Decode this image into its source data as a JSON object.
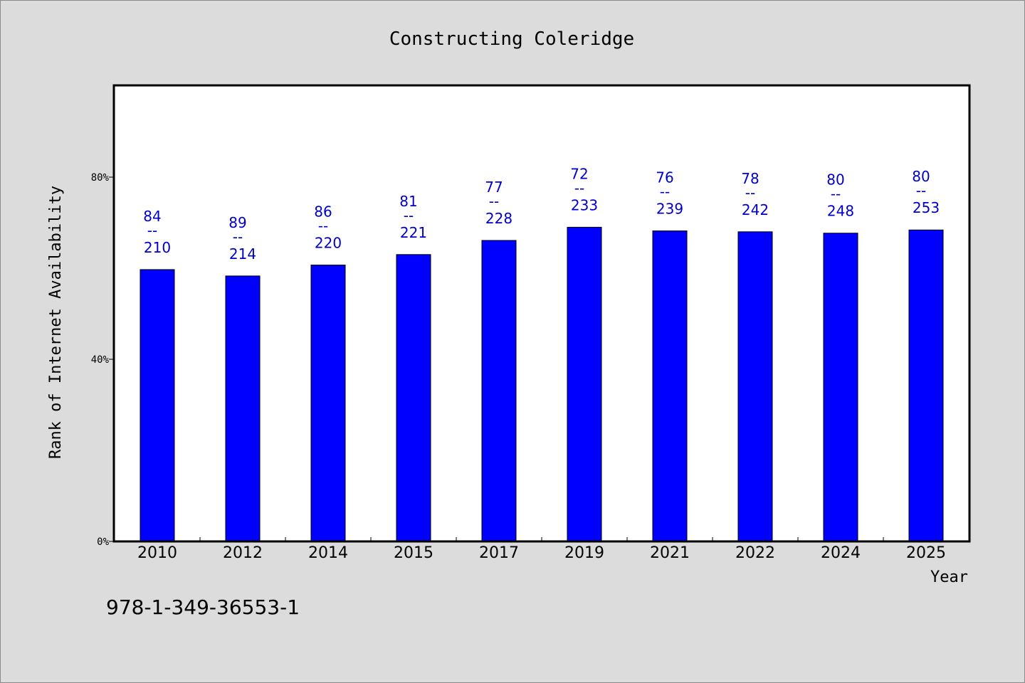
{
  "chart_data": {
    "type": "bar",
    "title": "Constructing Coleridge",
    "xlabel": "Year",
    "ylabel": "Rank of Internet Availability",
    "categories": [
      "2010",
      "2012",
      "2014",
      "2015",
      "2017",
      "2019",
      "2021",
      "2022",
      "2024",
      "2025"
    ],
    "values": [
      59.7,
      58.3,
      60.7,
      63.0,
      66.1,
      69.0,
      68.2,
      68.0,
      67.7,
      68.4
    ],
    "labels_top": [
      "84",
      "89",
      "86",
      "81",
      "77",
      "72",
      "76",
      "78",
      "80",
      "80"
    ],
    "labels_bottom": [
      "210",
      "214",
      "220",
      "221",
      "228",
      "233",
      "239",
      "242",
      "248",
      "253"
    ],
    "label_separator": "--",
    "ylim": [
      0,
      100
    ],
    "yticks": [
      0,
      40,
      80
    ],
    "ytick_labels": [
      "0%",
      "40%",
      "80%"
    ],
    "grid": false,
    "bar_color": "#0000ff",
    "label_color": "#0000cc",
    "plot_background": "#ffffff",
    "page_background": "#dcdcdc"
  },
  "footer_text": "978-1-349-36553-1"
}
